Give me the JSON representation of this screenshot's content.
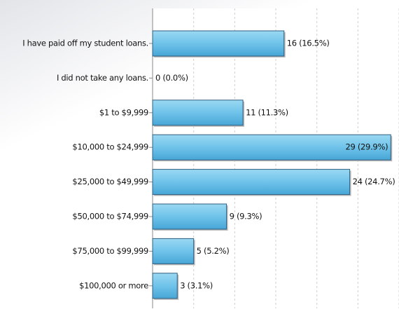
{
  "chart_data": {
    "type": "barh",
    "categories": [
      "I have paid off my student loans.",
      "I did not take any loans.",
      "$1 to $9,999",
      "$10,000 to $24,999",
      "$25,000 to $49,999",
      "$50,000 to $74,999",
      "$75,000 to $99,999",
      "$100,000 or more"
    ],
    "values": [
      16,
      0,
      11,
      29,
      24,
      9,
      5,
      3
    ],
    "value_labels": [
      "16 (16.5%)",
      "0 (0.0%)",
      "11 (11.3%)",
      "29 (29.9%)",
      "24 (24.7%)",
      "9 (9.3%)",
      "5 (5.2%)",
      "3 (3.1%)"
    ],
    "color": "#5bb8e2",
    "xlim": [
      0,
      30
    ],
    "xticks": [
      0,
      5,
      10,
      15,
      20,
      25,
      30
    ],
    "grid": true
  }
}
